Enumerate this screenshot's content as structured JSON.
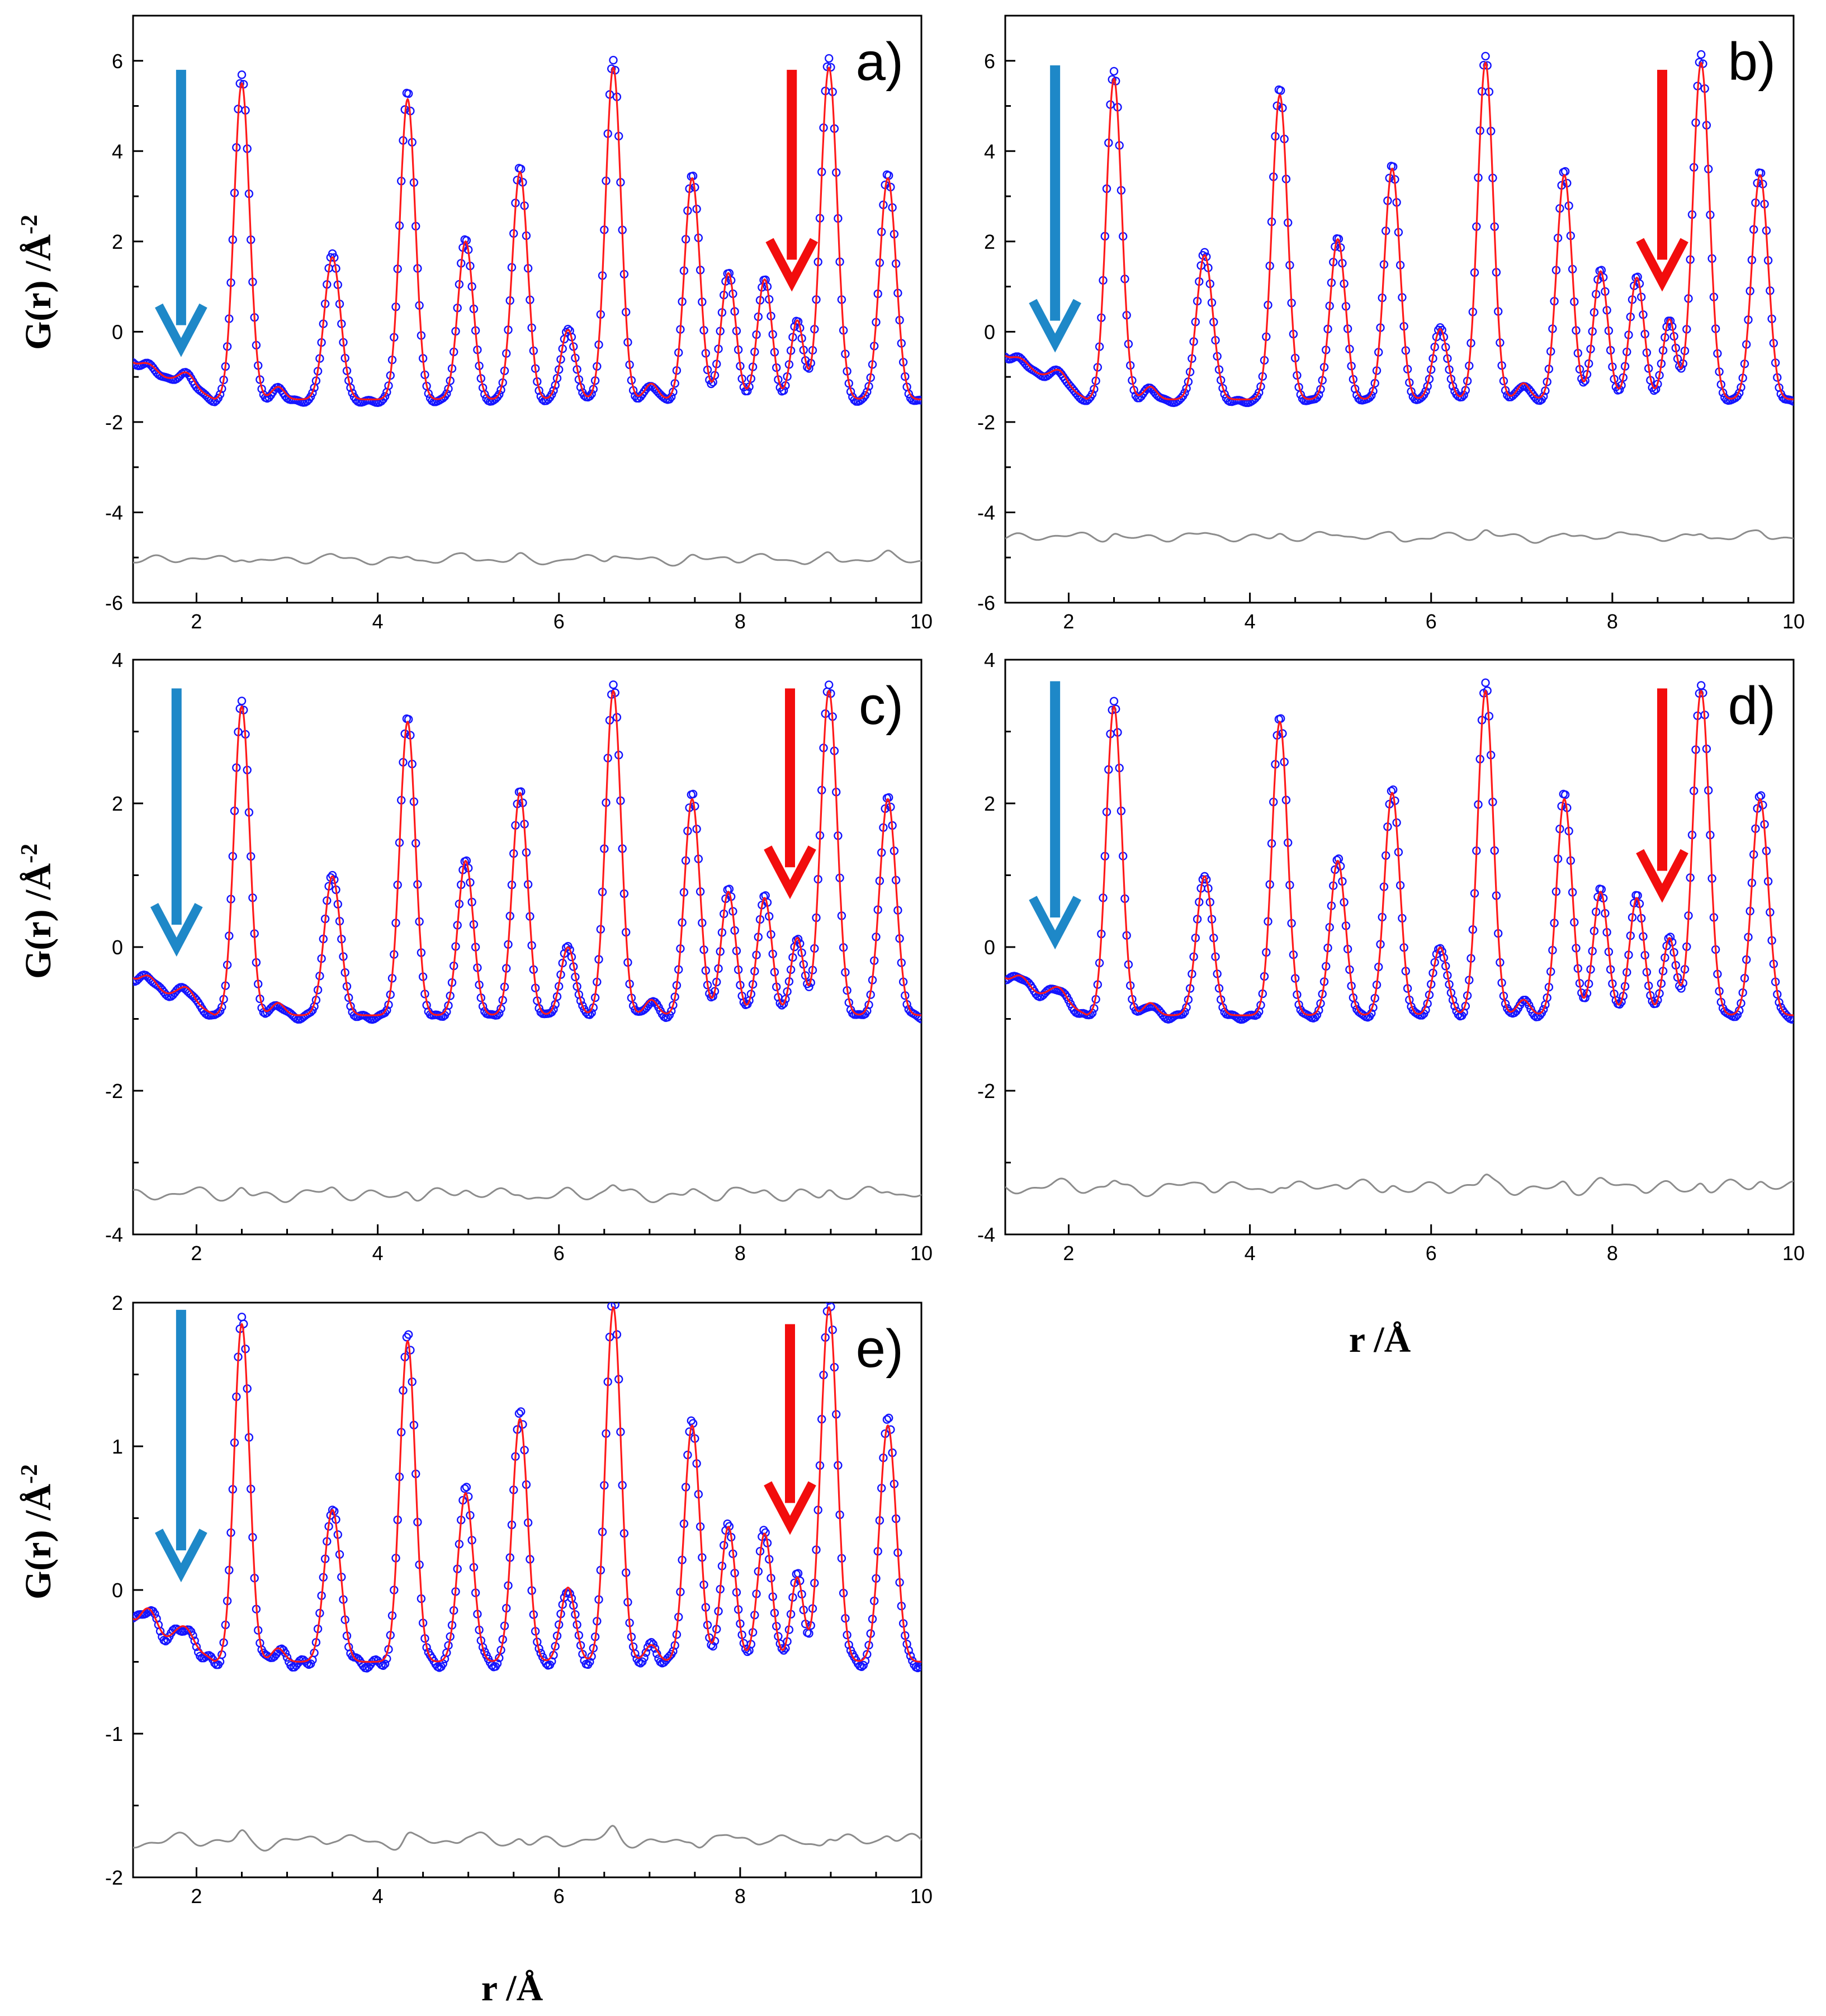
{
  "chart_data": {
    "type": "line",
    "x_axis_label": "r /Å",
    "y_axis_label": "G(r) /Å",
    "y_axis_label_superscript": "-2",
    "xlim": [
      1.3,
      10
    ],
    "x_ticks": [
      "2",
      "4",
      "6",
      "8",
      "10"
    ],
    "peaks": [
      {
        "r": 1.9,
        "w": 0.08,
        "a": 0.06
      },
      {
        "r": 2.5,
        "w": 0.085,
        "a": 1.0
      },
      {
        "r": 2.9,
        "w": 0.07,
        "a": 0.04
      },
      {
        "r": 3.5,
        "w": 0.09,
        "a": 0.45
      },
      {
        "r": 4.33,
        "w": 0.085,
        "a": 0.95
      },
      {
        "r": 4.97,
        "w": 0.085,
        "a": 0.5
      },
      {
        "r": 5.57,
        "w": 0.085,
        "a": 0.72
      },
      {
        "r": 6.1,
        "w": 0.08,
        "a": 0.22
      },
      {
        "r": 6.6,
        "w": 0.085,
        "a": 1.05
      },
      {
        "r": 7.02,
        "w": 0.07,
        "a": 0.05
      },
      {
        "r": 7.47,
        "w": 0.085,
        "a": 0.7
      },
      {
        "r": 7.87,
        "w": 0.08,
        "a": 0.4
      },
      {
        "r": 8.27,
        "w": 0.08,
        "a": 0.38
      },
      {
        "r": 8.63,
        "w": 0.07,
        "a": 0.25
      },
      {
        "r": 8.98,
        "w": 0.09,
        "a": 1.05
      },
      {
        "r": 9.63,
        "w": 0.09,
        "a": 0.7
      }
    ],
    "panels": [
      {
        "id": "a",
        "label": "a)",
        "ylim": [
          -6,
          7
        ],
        "y_ticks": [
          "-6",
          "-4",
          "-2",
          "0",
          "2",
          "4",
          "6"
        ],
        "baseline": -1.5,
        "scale": 7.0,
        "low_r_level": -0.6,
        "diff_offset": -5.05,
        "diff_amp": 0.12,
        "blue_arrow": {
          "r": 1.83,
          "g_top": 5.8,
          "g_tip": -0.35
        },
        "red_arrow": {
          "r": 8.57,
          "g_top": 5.8,
          "g_tip": 1.1
        }
      },
      {
        "id": "b",
        "label": "b)",
        "ylim": [
          -6,
          7
        ],
        "y_ticks": [
          "-6",
          "-4",
          "-2",
          "0",
          "2",
          "4",
          "6"
        ],
        "baseline": -1.5,
        "scale": 7.1,
        "low_r_level": -0.45,
        "diff_offset": -4.55,
        "diff_amp": 0.12,
        "blue_arrow": {
          "r": 1.85,
          "g_top": 5.9,
          "g_tip": -0.25
        },
        "red_arrow": {
          "r": 8.55,
          "g_top": 5.8,
          "g_tip": 1.1
        }
      },
      {
        "id": "c",
        "label": "c)",
        "ylim": [
          -4,
          4
        ],
        "y_ticks": [
          "-4",
          "-2",
          "0",
          "2",
          "4"
        ],
        "baseline": -0.95,
        "scale": 4.3,
        "low_r_level": -0.35,
        "diff_offset": -3.45,
        "diff_amp": 0.11,
        "blue_arrow": {
          "r": 1.78,
          "g_top": 3.6,
          "g_tip": 0.0
        },
        "red_arrow": {
          "r": 8.55,
          "g_top": 3.6,
          "g_tip": 0.8
        }
      },
      {
        "id": "d",
        "label": "d)",
        "ylim": [
          -4,
          4
        ],
        "y_ticks": [
          "-4",
          "-2",
          "0",
          "2",
          "4"
        ],
        "baseline": -0.95,
        "scale": 4.3,
        "low_r_level": -0.35,
        "diff_offset": -3.35,
        "diff_amp": 0.12,
        "blue_arrow": {
          "r": 1.85,
          "g_top": 3.7,
          "g_tip": 0.1
        },
        "red_arrow": {
          "r": 8.55,
          "g_top": 3.6,
          "g_tip": 0.75
        }
      },
      {
        "id": "e",
        "label": "e)",
        "ylim": [
          -2,
          2
        ],
        "y_ticks": [
          "-2",
          "-1",
          "0",
          "1",
          "2"
        ],
        "baseline": -0.5,
        "scale": 2.35,
        "low_r_level": -0.12,
        "diff_offset": -1.75,
        "diff_amp": 0.06,
        "blue_arrow": {
          "r": 1.83,
          "g_top": 1.95,
          "g_tip": 0.12
        },
        "red_arrow": {
          "r": 8.55,
          "g_top": 1.85,
          "g_tip": 0.45
        }
      }
    ]
  },
  "colors": {
    "experimental_points": "#1414ff",
    "model_fit": "#ff1a1a",
    "difference": "#8c8c8c",
    "blue_arrow": "#1e88c8",
    "red_arrow": "#f20d0d",
    "axis": "#000000"
  }
}
